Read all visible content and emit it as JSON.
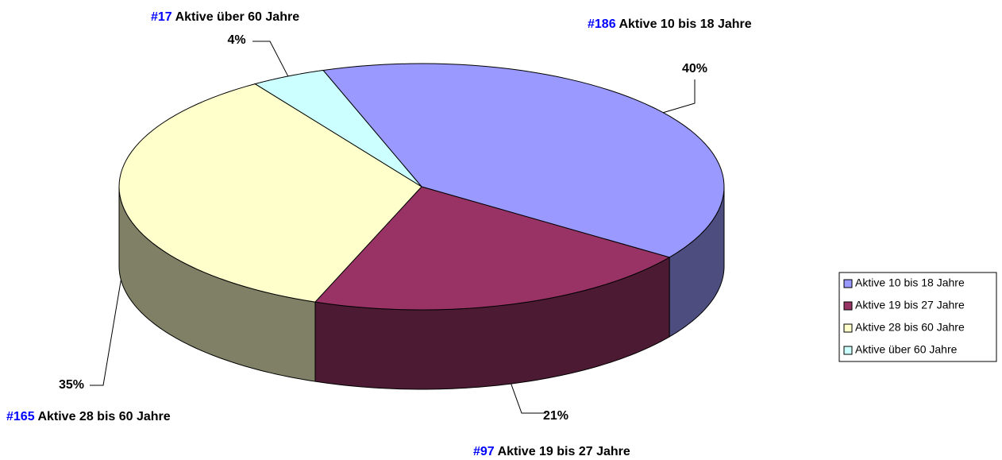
{
  "chart_data": {
    "type": "pie3d",
    "categories": [
      "Aktive 10 bis 18 Jahre",
      "Aktive 19 bis 27 Jahre",
      "Aktive 28 bis 60 Jahre",
      "Aktive über 60 Jahre"
    ],
    "values": [
      40,
      21,
      35,
      4
    ],
    "value_labels": [
      "40%",
      "21%",
      "35%",
      "4%"
    ],
    "count_labels": [
      "#186",
      "#97",
      "#165",
      "#17"
    ],
    "colors": [
      "#9999ff",
      "#993366",
      "#ffffcc",
      "#ccffff"
    ],
    "legend": "right"
  }
}
